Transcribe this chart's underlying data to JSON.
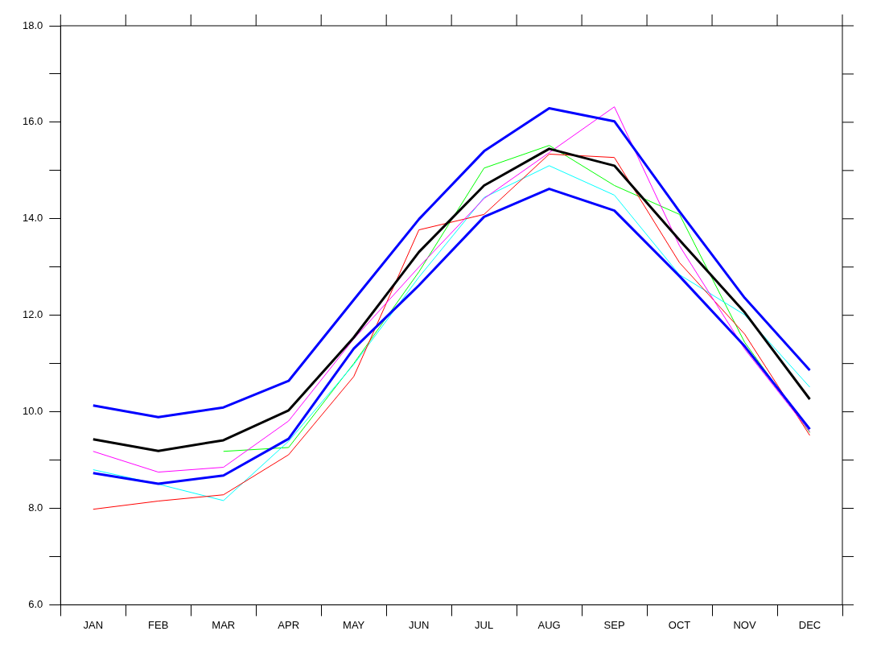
{
  "chart_data": {
    "type": "line",
    "categories": [
      "JAN",
      "FEB",
      "MAR",
      "APR",
      "MAY",
      "JUN",
      "JUL",
      "AUG",
      "SEP",
      "OCT",
      "NOV",
      "DEC"
    ],
    "series": [
      {
        "color": "#0000ff",
        "values": [
          10.13,
          9.89,
          10.09,
          10.64,
          12.32,
          13.99,
          15.4,
          16.29,
          16.02,
          14.15,
          12.36,
          10.86
        ]
      },
      {
        "color": "#000000",
        "values": [
          9.43,
          9.19,
          9.41,
          10.03,
          11.54,
          13.31,
          14.69,
          15.45,
          15.1,
          13.56,
          12.06,
          10.26
        ]
      },
      {
        "color": "#0000ff",
        "values": [
          8.73,
          8.51,
          8.68,
          9.44,
          11.31,
          12.62,
          14.04,
          14.62,
          14.17,
          12.81,
          11.36,
          9.64
        ]
      },
      {
        "color": "#ff00ff",
        "values": [
          9.18,
          8.75,
          8.85,
          9.81,
          11.51,
          13.0,
          14.42,
          15.37,
          16.32,
          13.44,
          11.3,
          9.59
        ]
      },
      {
        "color": "#ff0000",
        "values": [
          7.98,
          8.15,
          8.28,
          9.11,
          10.73,
          13.77,
          14.09,
          15.34,
          15.27,
          13.09,
          11.61,
          9.51
        ]
      },
      {
        "color": "#00ffff",
        "values": [
          8.8,
          8.5,
          8.16,
          9.39,
          10.98,
          12.79,
          14.44,
          15.1,
          14.49,
          12.84,
          12.01,
          10.51
        ]
      },
      {
        "color": "#00ff00",
        "values": [
          null,
          null,
          9.18,
          9.26,
          11.0,
          12.9,
          15.05,
          15.52,
          14.69,
          14.09,
          11.44,
          9.57
        ]
      }
    ],
    "ylim": [
      6,
      18
    ],
    "yticks": [
      {
        "value": 6,
        "label": "6.0"
      },
      {
        "value": 7,
        "label": null
      },
      {
        "value": 8,
        "label": "8.0"
      },
      {
        "value": 9,
        "label": null
      },
      {
        "value": 10,
        "label": "10.0"
      },
      {
        "value": 11,
        "label": null
      },
      {
        "value": 12,
        "label": "12.0"
      },
      {
        "value": 13,
        "label": null
      },
      {
        "value": 14,
        "label": "14.0"
      },
      {
        "value": 15,
        "label": null
      },
      {
        "value": 16,
        "label": "16.0"
      },
      {
        "value": 17,
        "label": null
      },
      {
        "value": 18,
        "label": "18.0"
      }
    ],
    "grid": false,
    "legend": false,
    "marker": "none",
    "line_style": "solid"
  }
}
